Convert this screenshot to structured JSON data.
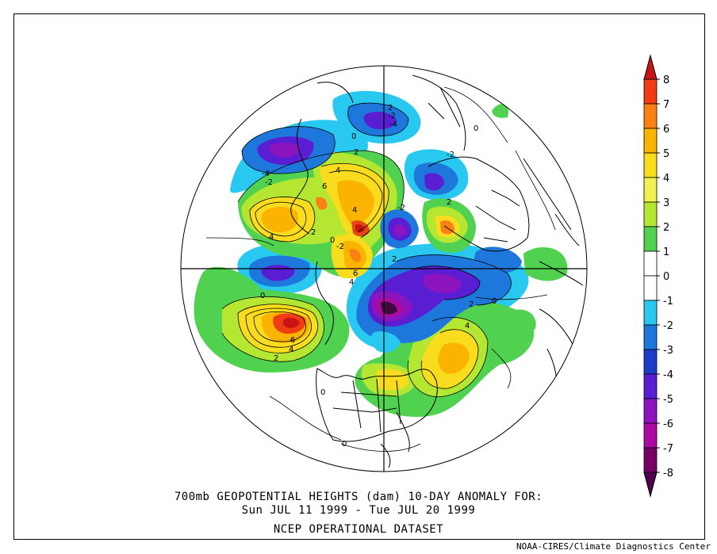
{
  "title": {
    "line1": "700mb GEOPOTENTIAL HEIGHTS (dam)   10-DAY ANOMALY FOR:",
    "line2": "Sun JUL 11 1999 - Tue JUL 20 1999",
    "line3": "NCEP OPERATIONAL DATASET"
  },
  "credit": "NOAA-CIRES/Climate Diagnostics Center",
  "legend": {
    "levels": [
      {
        "label": "8",
        "color": "#c81414"
      },
      {
        "label": "7",
        "color": "#f03c14"
      },
      {
        "label": "6",
        "color": "#fa8214"
      },
      {
        "label": "5",
        "color": "#fab400"
      },
      {
        "label": "4",
        "color": "#fadc1e"
      },
      {
        "label": "3",
        "color": "#f0f050"
      },
      {
        "label": "2",
        "color": "#b4e632"
      },
      {
        "label": "1",
        "color": "#50d250"
      },
      {
        "label": "0",
        "color": "#ffffff"
      },
      {
        "label": "-1",
        "color": "#ffffff"
      },
      {
        "label": "-2",
        "color": "#28c8f0"
      },
      {
        "label": "-3",
        "color": "#1e78dc"
      },
      {
        "label": "-4",
        "color": "#1e3cc8"
      },
      {
        "label": "-5",
        "color": "#5a1ed2"
      },
      {
        "label": "-6",
        "color": "#8c14be"
      },
      {
        "label": "-7",
        "color": "#aa0aa0"
      },
      {
        "label": "-8",
        "color": "#780064"
      }
    ],
    "top_cap_color": "#c81414",
    "bottom_cap_color": "#500050"
  },
  "anomalies": [
    {
      "value": 7,
      "color": "#e64614"
    },
    {
      "value": 5,
      "color": "#fa8214"
    },
    {
      "value": -6,
      "color": "#5a1ed2"
    },
    {
      "value": -8,
      "color": "#3c0a3c"
    },
    {
      "value": 4,
      "color": "#fadc1e"
    },
    {
      "value": 2,
      "color": "#b4e632"
    }
  ],
  "contour_labels": [
    "2",
    "-2",
    "-4",
    "0",
    "4",
    "-4",
    "-2",
    "2",
    "6",
    "4",
    "0",
    "4",
    "-2",
    "2",
    "2",
    "4",
    "0",
    "-2",
    "6",
    "4",
    "0",
    "0",
    "2",
    "4",
    "2",
    "6",
    "4",
    "-2",
    "2",
    "0",
    "0",
    "0"
  ]
}
